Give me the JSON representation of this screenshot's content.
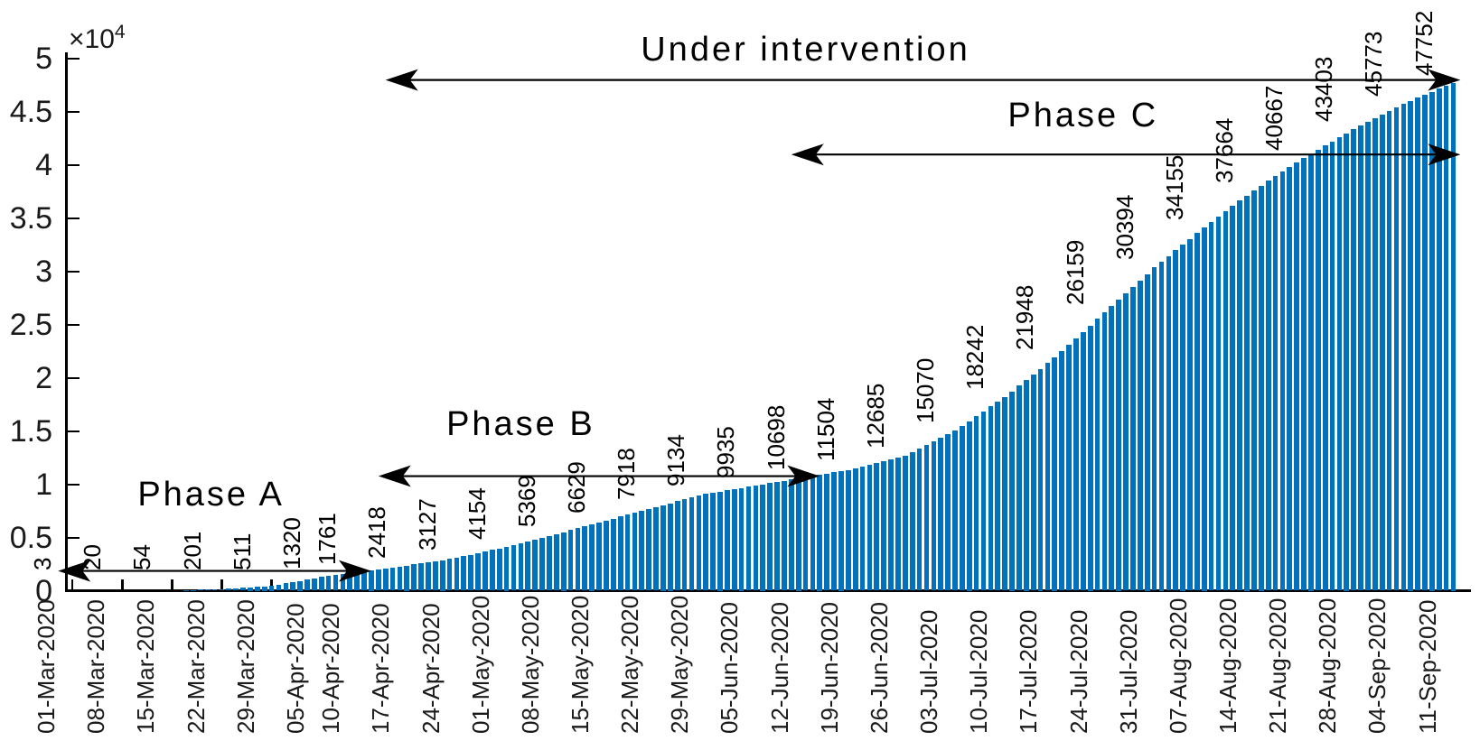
{
  "figure": {
    "y_axis": {
      "scale_base": "×10",
      "scale_exponent": "4",
      "tick_labels": [
        "0",
        "0.5",
        "1",
        "1.5",
        "2",
        "2.5",
        "3",
        "3.5",
        "4",
        "4.5",
        "5"
      ],
      "ylim": [
        0,
        50000
      ]
    },
    "x_axis": {
      "tick_labels": [
        "01-Mar-2020",
        "08-Mar-2020",
        "15-Mar-2020",
        "22-Mar-2020",
        "29-Mar-2020",
        "05-Apr-2020",
        "10-Apr-2020",
        "17-Apr-2020",
        "24-Apr-2020",
        "01-May-2020",
        "08-May-2020",
        "15-May-2020",
        "22-May-2020",
        "29-May-2020",
        "05-Jun-2020",
        "12-Jun-2020",
        "19-Jun-2020",
        "26-Jun-2020",
        "03-Jul-2020",
        "10-Jul-2020",
        "17-Jul-2020",
        "24-Jul-2020",
        "31-Jul-2020",
        "07-Aug-2020",
        "14-Aug-2020",
        "21-Aug-2020",
        "28-Aug-2020",
        "04-Sep-2020",
        "11-Sep-2020"
      ]
    }
  },
  "chart_data": {
    "type": "bar",
    "title": "",
    "xlabel": "",
    "ylabel": "",
    "ylim": [
      0,
      50000
    ],
    "grid": false,
    "bar_color": "#0072BD",
    "bars": "daily cumulative values, weekly points labeled",
    "categories": [
      "01-Mar-2020",
      "08-Mar-2020",
      "15-Mar-2020",
      "22-Mar-2020",
      "29-Mar-2020",
      "05-Apr-2020",
      "10-Apr-2020",
      "17-Apr-2020",
      "24-Apr-2020",
      "01-May-2020",
      "08-May-2020",
      "15-May-2020",
      "22-May-2020",
      "29-May-2020",
      "05-Jun-2020",
      "12-Jun-2020",
      "19-Jun-2020",
      "26-Jun-2020",
      "03-Jul-2020",
      "10-Jul-2020",
      "17-Jul-2020",
      "24-Jul-2020",
      "31-Jul-2020",
      "07-Aug-2020",
      "14-Aug-2020",
      "21-Aug-2020",
      "28-Aug-2020",
      "04-Sep-2020",
      "11-Sep-2020"
    ],
    "anchor_days": [
      0,
      7,
      14,
      21,
      28,
      35,
      40,
      47,
      54,
      61,
      68,
      75,
      82,
      89,
      96,
      103,
      110,
      117,
      124,
      131,
      138,
      145,
      152,
      159,
      166,
      173,
      180,
      187,
      194
    ],
    "values": [
      3,
      20,
      54,
      201,
      511,
      1320,
      1761,
      2418,
      3127,
      4154,
      5369,
      6629,
      7918,
      9134,
      9935,
      10698,
      11504,
      12685,
      15070,
      18242,
      21948,
      26159,
      30394,
      34155,
      37664,
      40667,
      43403,
      45773,
      47752
    ],
    "annotations": [
      {
        "label": "Under intervention",
        "arrow_y": 48000,
        "from_day": 44,
        "to_day": 195,
        "label_day": 103,
        "label_y": 49000
      },
      {
        "label": "Phase C",
        "arrow_y": 41000,
        "from_day": 101,
        "to_day": 195,
        "label_day": 142,
        "label_y": 42800
      },
      {
        "label": "Phase B",
        "arrow_y": 10800,
        "from_day": 43,
        "to_day": 105,
        "label_day": 63,
        "label_y": 13800
      },
      {
        "label": "Phase A",
        "arrow_y": 1900,
        "from_day": -2,
        "to_day": 42,
        "label_day": 19.5,
        "label_y": 7200
      }
    ]
  }
}
